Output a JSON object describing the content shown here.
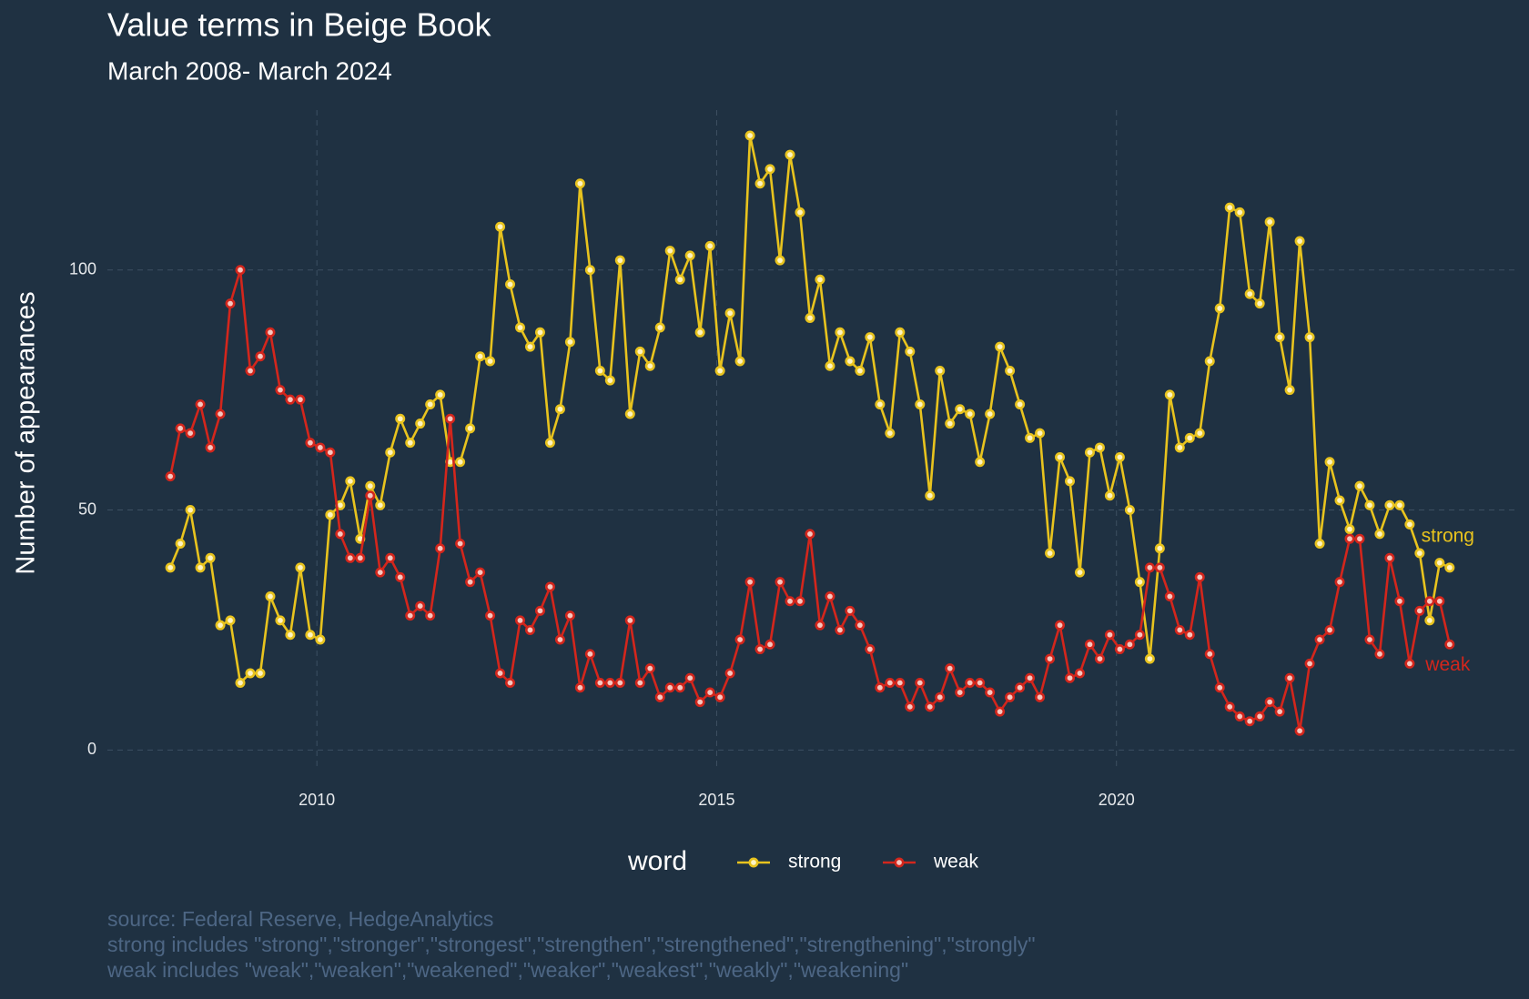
{
  "chart_data": {
    "type": "line",
    "title": "Value terms in Beige Book",
    "subtitle": "March 2008- March 2024",
    "y_label": "Number of appearances",
    "legend_title": "word",
    "legend": "bottom",
    "grid": true,
    "captions": [
      "source: Federal Reserve, HedgeAnalytics",
      "strong includes \"strong\",\"stronger\",\"strongest\",\"strengthen\",\"strengthened\",\"strengthening\",\"strongly\"",
      "weak includes  \"weak\",\"weaken\",\"weakened\",\"weaker\",\"weakest\",\"weakly\",\"weakening\""
    ],
    "xlim": [
      2007.38,
      2025
    ],
    "xticks": [
      2010,
      2015,
      2020
    ],
    "ylim": [
      -4.1,
      133.3
    ],
    "yticks": [
      0,
      50,
      100
    ],
    "x": [
      2008.167,
      2008.292,
      2008.417,
      2008.542,
      2008.667,
      2008.792,
      2008.917,
      2009.042,
      2009.167,
      2009.292,
      2009.417,
      2009.542,
      2009.667,
      2009.792,
      2009.917,
      2010.042,
      2010.167,
      2010.292,
      2010.417,
      2010.542,
      2010.667,
      2010.792,
      2010.917,
      2011.042,
      2011.167,
      2011.292,
      2011.417,
      2011.542,
      2011.667,
      2011.792,
      2011.917,
      2012.042,
      2012.167,
      2012.292,
      2012.417,
      2012.542,
      2012.667,
      2012.792,
      2012.917,
      2013.042,
      2013.167,
      2013.292,
      2013.417,
      2013.542,
      2013.667,
      2013.792,
      2013.917,
      2014.042,
      2014.167,
      2014.292,
      2014.417,
      2014.542,
      2014.667,
      2014.792,
      2014.917,
      2015.042,
      2015.167,
      2015.292,
      2015.417,
      2015.542,
      2015.667,
      2015.792,
      2015.917,
      2016.042,
      2016.167,
      2016.292,
      2016.417,
      2016.542,
      2016.667,
      2016.792,
      2016.917,
      2017.042,
      2017.167,
      2017.292,
      2017.417,
      2017.542,
      2017.667,
      2017.792,
      2017.917,
      2018.042,
      2018.167,
      2018.292,
      2018.417,
      2018.542,
      2018.667,
      2018.792,
      2018.917,
      2019.042,
      2019.167,
      2019.292,
      2019.417,
      2019.542,
      2019.667,
      2019.792,
      2019.917,
      2020.042,
      2020.167,
      2020.292,
      2020.417,
      2020.542,
      2020.667,
      2020.792,
      2020.917,
      2021.042,
      2021.167,
      2021.292,
      2021.417,
      2021.542,
      2021.667,
      2021.792,
      2021.917,
      2022.042,
      2022.167,
      2022.292,
      2022.417,
      2022.542,
      2022.667,
      2022.792,
      2022.917,
      2023.042,
      2023.167,
      2023.292,
      2023.417,
      2023.542,
      2023.667,
      2023.792,
      2023.917,
      2024.042,
      2024.167
    ],
    "series": [
      {
        "name": "strong",
        "color": "#e8c31e",
        "point_fill": "#fdf3c4",
        "values": [
          38,
          43,
          50,
          38,
          40,
          26,
          27,
          14,
          16,
          16,
          32,
          27,
          24,
          38,
          24,
          23,
          49,
          51,
          56,
          44,
          55,
          51,
          62,
          69,
          64,
          68,
          72,
          74,
          60,
          60,
          67,
          82,
          81,
          109,
          97,
          88,
          84,
          87,
          64,
          71,
          85,
          118,
          100,
          79,
          77,
          102,
          70,
          83,
          80,
          88,
          104,
          98,
          103,
          87,
          105,
          79,
          91,
          81,
          128,
          118,
          121,
          102,
          124,
          112,
          90,
          98,
          80,
          87,
          81,
          79,
          86,
          72,
          66,
          87,
          83,
          72,
          53,
          79,
          68,
          71,
          70,
          60,
          70,
          84,
          79,
          72,
          65,
          66,
          41,
          61,
          56,
          37,
          62,
          63,
          53,
          61,
          50,
          35,
          19,
          42,
          74,
          63,
          65,
          66,
          81,
          92,
          113,
          112,
          95,
          93,
          110,
          86,
          75,
          106,
          86,
          43,
          60,
          52,
          46,
          55,
          51,
          45,
          51,
          51,
          47,
          41,
          27,
          39,
          38
        ]
      },
      {
        "name": "weak",
        "color": "#d3261c",
        "point_fill": "#f5c6c0",
        "values": [
          57,
          67,
          66,
          72,
          63,
          70,
          93,
          100,
          79,
          82,
          87,
          75,
          73,
          73,
          64,
          63,
          62,
          45,
          40,
          40,
          53,
          37,
          40,
          36,
          28,
          30,
          28,
          42,
          69,
          43,
          35,
          37,
          28,
          16,
          14,
          27,
          25,
          29,
          34,
          23,
          28,
          13,
          20,
          14,
          14,
          14,
          27,
          14,
          17,
          11,
          13,
          13,
          15,
          10,
          12,
          11,
          16,
          23,
          35,
          21,
          22,
          35,
          31,
          31,
          45,
          26,
          32,
          25,
          29,
          26,
          21,
          13,
          14,
          14,
          9,
          14,
          9,
          11,
          17,
          12,
          14,
          14,
          12,
          8,
          11,
          13,
          15,
          11,
          19,
          26,
          15,
          16,
          22,
          19,
          24,
          21,
          22,
          24,
          38,
          38,
          32,
          25,
          24,
          36,
          20,
          13,
          9,
          7,
          6,
          7,
          10,
          8,
          15,
          4,
          18,
          23,
          25,
          35,
          44,
          44,
          23,
          20,
          40,
          31,
          18,
          29,
          31,
          31,
          22
        ]
      }
    ]
  }
}
